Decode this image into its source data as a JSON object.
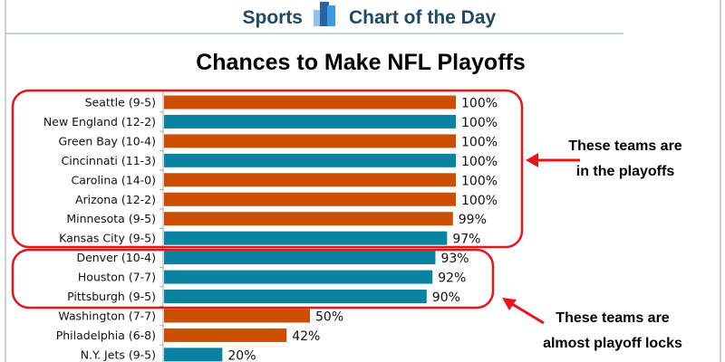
{
  "header": {
    "left": "Sports",
    "right": "Chart of the Day",
    "logo_icon": "bar-chart-logo-icon"
  },
  "colors": {
    "orange": "#CC4E00",
    "teal": "#0A82A2",
    "highlight": "#E8141C",
    "header_text": "#1f4a63"
  },
  "chart_data": {
    "type": "bar",
    "orientation": "horizontal",
    "title": "Chances to Make NFL Playoffs",
    "xlim": [
      0,
      100
    ],
    "grid": false,
    "categories": [
      "Seattle (9-5)",
      "New England (12-2)",
      "Green Bay (10-4)",
      "Cincinnati (11-3)",
      "Carolina (14-0)",
      "Arizona (12-2)",
      "Minnesota (9-5)",
      "Kansas City (9-5)",
      "Denver (10-4)",
      "Houston (7-7)",
      "Pittsburgh (9-5)",
      "Washington (7-7)",
      "Philadelphia (6-8)",
      "N.Y. Jets (9-5)"
    ],
    "values": [
      100,
      100,
      100,
      100,
      100,
      100,
      99,
      97,
      93,
      92,
      90,
      50,
      42,
      20
    ],
    "value_labels": [
      "100%",
      "100%",
      "100%",
      "100%",
      "100%",
      "100%",
      "99%",
      "97%",
      "93%",
      "92%",
      "90%",
      "50%",
      "42%",
      "20%"
    ],
    "bar_colors": [
      "orange",
      "teal",
      "orange",
      "teal",
      "orange",
      "orange",
      "orange",
      "teal",
      "teal",
      "teal",
      "teal",
      "orange",
      "orange",
      "teal"
    ],
    "annotations": [
      {
        "line1": "These teams are",
        "line2": "in the playoffs",
        "groups": [
          0,
          7
        ]
      },
      {
        "line1": "These teams are",
        "line2": "almost playoff locks",
        "groups": [
          8,
          10
        ]
      }
    ]
  }
}
